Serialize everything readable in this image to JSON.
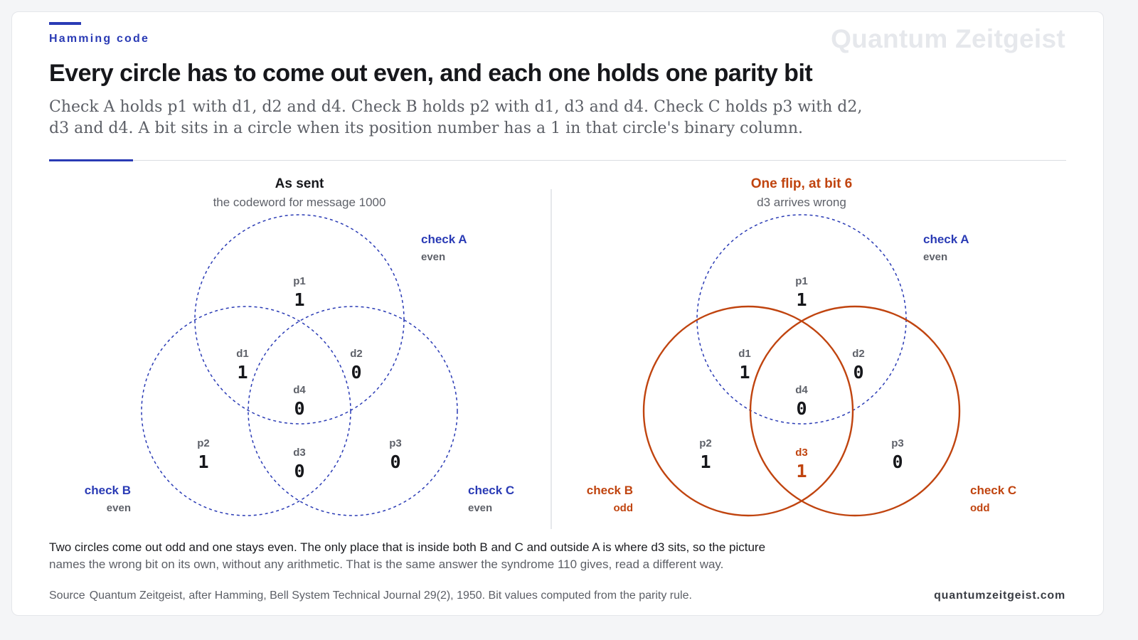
{
  "header": {
    "eyebrow": "Hamming code",
    "brand": "Quantum Zeitgeist",
    "title": "Every circle has to come out even, and each one holds one parity bit",
    "subtitle": "Check A holds p1 with d1, d2 and d4. Check B holds p2 with d1, d3 and d4. Check C holds p3 with d2, d3 and d4. A bit sits in a circle when its position number has a 1 in that circle's binary column."
  },
  "colors": {
    "blue": "#2a3bb5",
    "red": "#c0440f",
    "label_gray": "#5e6169",
    "value_dark": "#16171b"
  },
  "panels": [
    {
      "title": "As sent",
      "subtitle": "the codeword for message 1000",
      "alert": false,
      "bits": {
        "p1": "1",
        "d1": "1",
        "d2": "0",
        "d4": "0",
        "p2": "1",
        "d3": "0",
        "p3": "0"
      },
      "flipped_bit": "",
      "checks": {
        "A": {
          "name": "check A",
          "status": "even",
          "odd": false
        },
        "B": {
          "name": "check B",
          "status": "even",
          "odd": false
        },
        "C": {
          "name": "check C",
          "status": "even",
          "odd": false
        }
      }
    },
    {
      "title": "One flip, at bit 6",
      "subtitle": "d3 arrives wrong",
      "alert": true,
      "bits": {
        "p1": "1",
        "d1": "1",
        "d2": "0",
        "d4": "0",
        "p2": "1",
        "d3": "1",
        "p3": "0"
      },
      "flipped_bit": "d3",
      "checks": {
        "A": {
          "name": "check A",
          "status": "even",
          "odd": false
        },
        "B": {
          "name": "check B",
          "status": "odd",
          "odd": true
        },
        "C": {
          "name": "check C",
          "status": "odd",
          "odd": true
        }
      }
    }
  ],
  "caption": {
    "line1": "Two circles come out odd and one stays even. The only place that is inside both B and C and outside A is where d3 sits, so the picture",
    "line2": "names the wrong bit on its own, without any arithmetic. That is the same answer the syndrome 110 gives, read a different way."
  },
  "footer": {
    "source_label": "Source",
    "source_text": "Quantum Zeitgeist, after Hamming, Bell System Technical Journal 29(2), 1950. Bit values computed from the parity rule.",
    "site": "quantumzeitgeist.com"
  }
}
